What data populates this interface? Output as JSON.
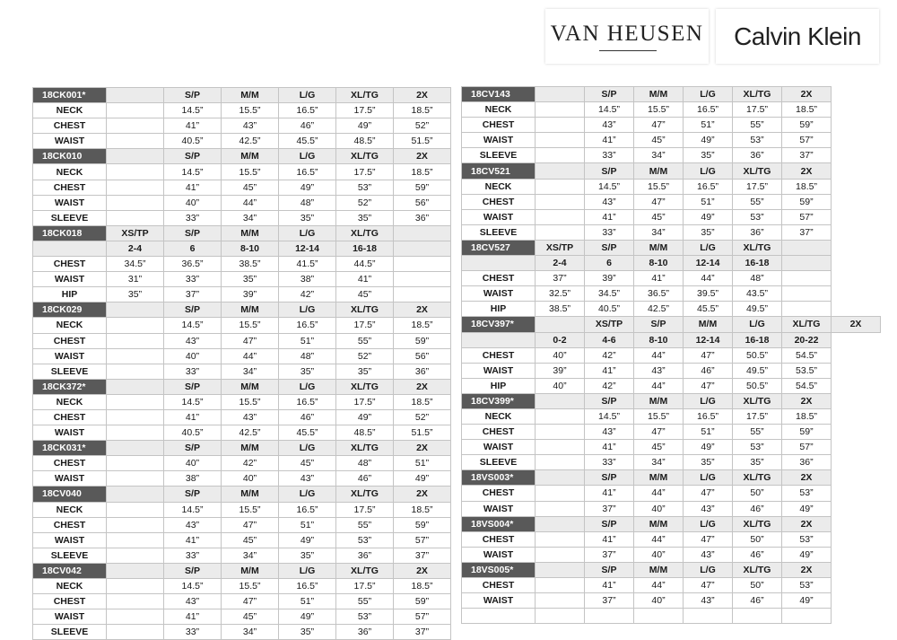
{
  "brands": {
    "van_heusen": "VAN HEUSEN",
    "calvin_klein": "Calvin Klein"
  },
  "left_sections": [
    {
      "style": "18CK001*",
      "sizes": [
        "S/P",
        "M/M",
        "L/G",
        "XL/TG",
        "2X"
      ],
      "sub": null,
      "rows": [
        {
          "label": "NECK",
          "values": [
            "14.5”",
            "15.5”",
            "16.5”",
            "17.5”",
            "18.5”"
          ]
        },
        {
          "label": "CHEST",
          "values": [
            "41”",
            "43”",
            "46”",
            "49”",
            "52”"
          ]
        },
        {
          "label": "WAIST",
          "values": [
            "40.5”",
            "42.5”",
            "45.5”",
            "48.5”",
            "51.5”"
          ]
        }
      ]
    },
    {
      "style": "18CK010",
      "sizes": [
        "S/P",
        "M/M",
        "L/G",
        "XL/TG",
        "2X"
      ],
      "sub": null,
      "rows": [
        {
          "label": "NECK",
          "values": [
            "14.5”",
            "15.5”",
            "16.5”",
            "17.5”",
            "18.5”"
          ]
        },
        {
          "label": "CHEST",
          "values": [
            "41”",
            "45”",
            "49”",
            "53”",
            "59”"
          ]
        },
        {
          "label": "WAIST",
          "values": [
            "40”",
            "44”",
            "48”",
            "52”",
            "56”"
          ]
        },
        {
          "label": "SLEEVE",
          "values": [
            "33”",
            "34”",
            "35”",
            "35”",
            "36”"
          ]
        }
      ]
    },
    {
      "style": "18CK018",
      "sizes": [
        "XS/TP",
        "S/P",
        "M/M",
        "L/G",
        "XL/TG"
      ],
      "sub": [
        "2-4",
        "6",
        "8-10",
        "12-14",
        "16-18"
      ],
      "rows": [
        {
          "label": "CHEST",
          "values": [
            "34.5”",
            "36.5”",
            "38.5”",
            "41.5”",
            "44.5”"
          ]
        },
        {
          "label": "WAIST",
          "values": [
            "31”",
            "33”",
            "35”",
            "38”",
            "41”"
          ]
        },
        {
          "label": "HIP",
          "values": [
            "35”",
            "37”",
            "39”",
            "42”",
            "45”"
          ]
        }
      ]
    },
    {
      "style": "18CK029",
      "sizes": [
        "S/P",
        "M/M",
        "L/G",
        "XL/TG",
        "2X"
      ],
      "sub": null,
      "rows": [
        {
          "label": "NECK",
          "values": [
            "14.5”",
            "15.5”",
            "16.5”",
            "17.5”",
            "18.5”"
          ]
        },
        {
          "label": "CHEST",
          "values": [
            "43”",
            "47”",
            "51”",
            "55”",
            "59”"
          ]
        },
        {
          "label": "WAIST",
          "values": [
            "40”",
            "44”",
            "48”",
            "52”",
            "56”"
          ]
        },
        {
          "label": "SLEEVE",
          "values": [
            "33”",
            "34”",
            "35”",
            "35”",
            "36”"
          ]
        }
      ]
    },
    {
      "style": "18CK372*",
      "sizes": [
        "S/P",
        "M/M",
        "L/G",
        "XL/TG",
        "2X"
      ],
      "sub": null,
      "rows": [
        {
          "label": "NECK",
          "values": [
            "14.5”",
            "15.5”",
            "16.5”",
            "17.5”",
            "18.5”"
          ]
        },
        {
          "label": "CHEST",
          "values": [
            "41”",
            "43”",
            "46”",
            "49”",
            "52”"
          ]
        },
        {
          "label": "WAIST",
          "values": [
            "40.5”",
            "42.5”",
            "45.5”",
            "48.5”",
            "51.5”"
          ]
        }
      ]
    },
    {
      "style": "18CK031*",
      "sizes": [
        "S/P",
        "M/M",
        "L/G",
        "XL/TG",
        "2X"
      ],
      "sub": null,
      "rows": [
        {
          "label": "CHEST",
          "values": [
            "40”",
            "42”",
            "45”",
            "48”",
            "51”"
          ]
        },
        {
          "label": "WAIST",
          "values": [
            "38”",
            "40”",
            "43”",
            "46”",
            "49”"
          ]
        }
      ]
    },
    {
      "style": "18CV040",
      "sizes": [
        "S/P",
        "M/M",
        "L/G",
        "XL/TG",
        "2X"
      ],
      "sub": null,
      "rows": [
        {
          "label": "NECK",
          "values": [
            "14.5”",
            "15.5”",
            "16.5”",
            "17.5”",
            "18.5”"
          ]
        },
        {
          "label": "CHEST",
          "values": [
            "43”",
            "47”",
            "51”",
            "55”",
            "59”"
          ]
        },
        {
          "label": "WAIST",
          "values": [
            "41”",
            "45”",
            "49”",
            "53”",
            "57”"
          ]
        },
        {
          "label": "SLEEVE",
          "values": [
            "33”",
            "34”",
            "35”",
            "36”",
            "37”"
          ]
        }
      ]
    },
    {
      "style": "18CV042",
      "sizes": [
        "S/P",
        "M/M",
        "L/G",
        "XL/TG",
        "2X"
      ],
      "sub": null,
      "rows": [
        {
          "label": "NECK",
          "values": [
            "14.5”",
            "15.5”",
            "16.5”",
            "17.5”",
            "18.5”"
          ]
        },
        {
          "label": "CHEST",
          "values": [
            "43”",
            "47”",
            "51”",
            "55”",
            "59”"
          ]
        },
        {
          "label": "WAIST",
          "values": [
            "41”",
            "45”",
            "49”",
            "53”",
            "57”"
          ]
        },
        {
          "label": "SLEEVE",
          "values": [
            "33”",
            "34”",
            "35”",
            "36”",
            "37”"
          ]
        }
      ]
    }
  ],
  "right_sections": [
    {
      "style": "18CV143",
      "sizes": [
        "S/P",
        "M/M",
        "L/G",
        "XL/TG",
        "2X"
      ],
      "sub": null,
      "rows": [
        {
          "label": "NECK",
          "values": [
            "14.5”",
            "15.5”",
            "16.5”",
            "17.5”",
            "18.5”"
          ]
        },
        {
          "label": "CHEST",
          "values": [
            "43”",
            "47”",
            "51”",
            "55”",
            "59”"
          ]
        },
        {
          "label": "WAIST",
          "values": [
            "41”",
            "45”",
            "49”",
            "53”",
            "57”"
          ]
        },
        {
          "label": "SLEEVE",
          "values": [
            "33”",
            "34”",
            "35”",
            "36”",
            "37”"
          ]
        }
      ]
    },
    {
      "style": "18CV521",
      "sizes": [
        "S/P",
        "M/M",
        "L/G",
        "XL/TG",
        "2X"
      ],
      "sub": null,
      "rows": [
        {
          "label": "NECK",
          "values": [
            "14.5”",
            "15.5”",
            "16.5”",
            "17.5”",
            "18.5”"
          ]
        },
        {
          "label": "CHEST",
          "values": [
            "43”",
            "47”",
            "51”",
            "55”",
            "59”"
          ]
        },
        {
          "label": "WAIST",
          "values": [
            "41”",
            "45”",
            "49”",
            "53”",
            "57”"
          ]
        },
        {
          "label": "SLEEVE",
          "values": [
            "33”",
            "34”",
            "35”",
            "36”",
            "37”"
          ]
        }
      ]
    },
    {
      "style": "18CV527",
      "sizes": [
        "XS/TP",
        "S/P",
        "M/M",
        "L/G",
        "XL/TG"
      ],
      "sub": [
        "2-4",
        "6",
        "8-10",
        "12-14",
        "16-18"
      ],
      "rows": [
        {
          "label": "CHEST",
          "values": [
            "37”",
            "39”",
            "41”",
            "44”",
            "48”"
          ]
        },
        {
          "label": "WAIST",
          "values": [
            "32.5”",
            "34.5”",
            "36.5”",
            "39.5”",
            "43.5”"
          ]
        },
        {
          "label": "HIP",
          "values": [
            "38.5”",
            "40.5”",
            "42.5”",
            "45.5”",
            "49.5”"
          ]
        }
      ]
    },
    {
      "style": "18CV397*",
      "sizes": [
        "XS/TP",
        "S/P",
        "M/M",
        "L/G",
        "XL/TG",
        "2X"
      ],
      "sub": [
        "0-2",
        "4-6",
        "8-10",
        "12-14",
        "16-18",
        "20-22"
      ],
      "rows": [
        {
          "label": "CHEST",
          "values": [
            "40”",
            "42”",
            "44”",
            "47”",
            "50.5”",
            "54.5”"
          ]
        },
        {
          "label": "WAIST",
          "values": [
            "39”",
            "41”",
            "43”",
            "46”",
            "49.5”",
            "53.5”"
          ]
        },
        {
          "label": "HIP",
          "values": [
            "40”",
            "42”",
            "44”",
            "47”",
            "50.5”",
            "54.5”"
          ]
        }
      ]
    },
    {
      "style": "18CV399*",
      "sizes": [
        "S/P",
        "M/M",
        "L/G",
        "XL/TG",
        "2X"
      ],
      "sub": null,
      "rows": [
        {
          "label": "NECK",
          "values": [
            "14.5”",
            "15.5”",
            "16.5”",
            "17.5”",
            "18.5”"
          ]
        },
        {
          "label": "CHEST",
          "values": [
            "43”",
            "47”",
            "51”",
            "55”",
            "59”"
          ]
        },
        {
          "label": "WAIST",
          "values": [
            "41”",
            "45”",
            "49”",
            "53”",
            "57”"
          ]
        },
        {
          "label": "SLEEVE",
          "values": [
            "33”",
            "34”",
            "35”",
            "35”",
            "36”"
          ]
        }
      ]
    },
    {
      "style": "18VS003*",
      "sizes": [
        "S/P",
        "M/M",
        "L/G",
        "XL/TG",
        "2X"
      ],
      "sub": null,
      "rows": [
        {
          "label": "CHEST",
          "values": [
            "41”",
            "44”",
            "47”",
            "50”",
            "53”"
          ]
        },
        {
          "label": "WAIST",
          "values": [
            "37”",
            "40”",
            "43”",
            "46”",
            "49”"
          ]
        }
      ]
    },
    {
      "style": "18VS004*",
      "sizes": [
        "S/P",
        "M/M",
        "L/G",
        "XL/TG",
        "2X"
      ],
      "sub": null,
      "rows": [
        {
          "label": "CHEST",
          "values": [
            "41”",
            "44”",
            "47”",
            "50”",
            "53”"
          ]
        },
        {
          "label": "WAIST",
          "values": [
            "37”",
            "40”",
            "43”",
            "46”",
            "49”"
          ]
        }
      ]
    },
    {
      "style": "18VS005*",
      "sizes": [
        "S/P",
        "M/M",
        "L/G",
        "XL/TG",
        "2X"
      ],
      "sub": null,
      "rows": [
        {
          "label": "CHEST",
          "values": [
            "41”",
            "44”",
            "47”",
            "50”",
            "53”"
          ]
        },
        {
          "label": "WAIST",
          "values": [
            "37”",
            "40”",
            "43”",
            "46”",
            "49”"
          ]
        }
      ]
    }
  ]
}
